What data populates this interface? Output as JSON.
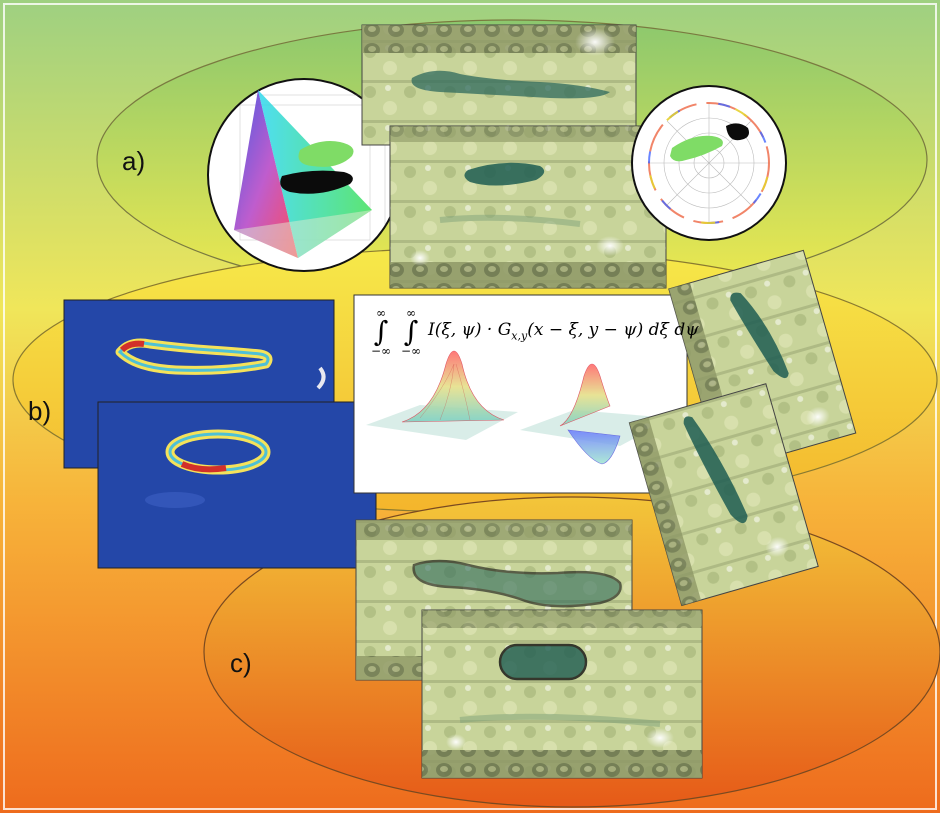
{
  "stages": [
    {
      "label": "a)"
    },
    {
      "label": "b)"
    },
    {
      "label": "c)"
    }
  ],
  "formula": {
    "lower1": "−∞",
    "upper1": "∞",
    "lower2": "−∞",
    "upper2": "∞",
    "body": "I(ξ, ψ) · G",
    "sub": "x,y",
    "args": "(x − ξ, y − ψ) dξ dψ"
  },
  "colors": {
    "background_top": "#9ed081",
    "background_mid": "#f7e24c",
    "background_bottom": "#ee6b1d",
    "heatmap_bg": "#2447a8",
    "leaf_tint": "#c9d69a",
    "lesion": "#1f5d52"
  },
  "icons": [
    "rgb-tetrahedron-plot",
    "polar-hue-plot",
    "gaussian-kernel-surface",
    "gaussian-derivative-surface"
  ]
}
